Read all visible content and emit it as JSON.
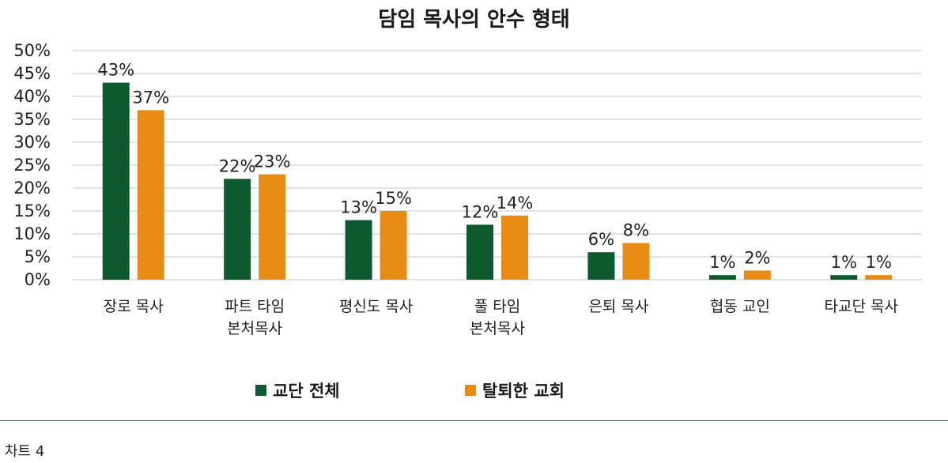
{
  "colors": {
    "series1": "#0d5a2e",
    "series2": "#e88c14",
    "grid": "#d0d0d0",
    "divider": "#2e5b3f"
  },
  "caption": "차트 4",
  "chart_data": {
    "type": "bar",
    "title": "담임 목사의 안수 형태",
    "categories": [
      [
        "장로 목사"
      ],
      [
        "파트 타임",
        "본처목사"
      ],
      [
        "평신도 목사"
      ],
      [
        "풀 타임",
        "본처목사"
      ],
      [
        "은퇴 목사"
      ],
      [
        "협동 교인"
      ],
      [
        "타교단 목사"
      ]
    ],
    "series": [
      {
        "name": "교단 전체",
        "values": [
          43,
          22,
          13,
          12,
          6,
          1,
          1
        ],
        "labels": [
          "43%",
          "22%",
          "13%",
          "12%",
          "6%",
          "1%",
          "1%"
        ]
      },
      {
        "name": "탈퇴한 교회",
        "values": [
          37,
          23,
          15,
          14,
          8,
          2,
          1
        ],
        "labels": [
          "37%",
          "23%",
          "15%",
          "14%",
          "8%",
          "2%",
          "1%"
        ]
      }
    ],
    "ylim": [
      0,
      50
    ],
    "yticks": [
      "0%",
      "5%",
      "10%",
      "15%",
      "20%",
      "25%",
      "30%",
      "35%",
      "40%",
      "45%",
      "50%"
    ],
    "grid": true,
    "legend_position": "bottom"
  }
}
